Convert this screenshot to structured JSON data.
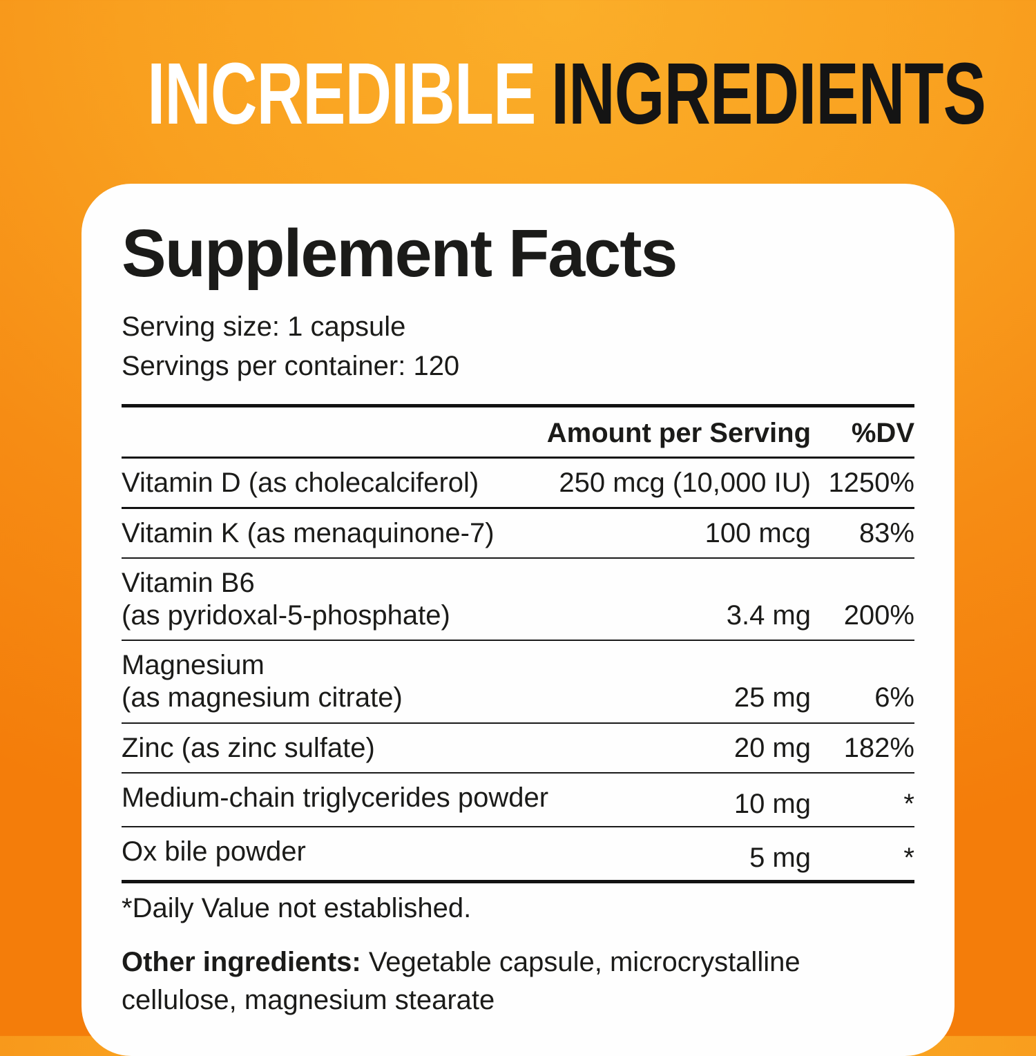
{
  "colors": {
    "background_center": "#fbae29",
    "background_edge": "#f47d0a",
    "card_background": "#fefefe",
    "headline_white": "#ffffff",
    "headline_black": "#141414",
    "text": "#1b1b19"
  },
  "header": {
    "title_part1": "INCREDIBLE",
    "title_part2": "INGREDIENTS"
  },
  "panel": {
    "heading": "Supplement Facts",
    "serving_size": "Serving size: 1 capsule",
    "servings_per_container": "Servings per container: 120",
    "table": {
      "amount_header": "Amount per Serving",
      "dv_header": "%DV",
      "rows": [
        {
          "name": "Vitamin D (as cholecalciferol)",
          "amount": "250 mcg (10,000 IU)",
          "dv": "1250%"
        },
        {
          "name": "Vitamin K (as menaquinone-7)",
          "amount": "100 mcg",
          "dv": "83%"
        },
        {
          "name": "Vitamin B6",
          "name2": "(as pyridoxal-5-phosphate)",
          "amount": "3.4 mg",
          "dv": "200%"
        },
        {
          "name": "Magnesium",
          "name2": "(as magnesium citrate)",
          "amount": "25 mg",
          "dv": "6%"
        },
        {
          "name": "Zinc (as zinc sulfate)",
          "amount": "20 mg",
          "dv": "182%"
        },
        {
          "name": "Medium-chain triglycerides powder",
          "amount": "10 mg",
          "dv": "*"
        },
        {
          "name": "Ox bile powder",
          "amount": "5 mg",
          "dv": "*"
        }
      ]
    },
    "footnote": "*Daily Value not established.",
    "other_ingredients": {
      "label": "Other ingredients:",
      "text": " Vegetable capsule, microcrystalline cellulose, magnesium stearate"
    }
  }
}
